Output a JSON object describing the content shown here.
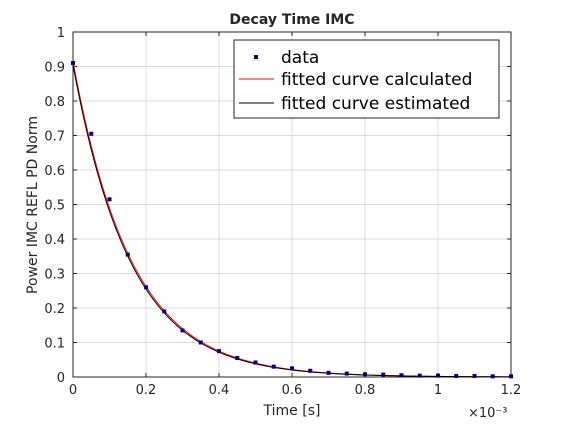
{
  "chart_data": {
    "type": "line",
    "title": "Decay Time IMC",
    "xlabel": "Time [s]",
    "ylabel": "Power IMC REFL PD Norm",
    "x_multiplier": "×10⁻³",
    "xlim": [
      0,
      1.2
    ],
    "ylim": [
      0,
      1
    ],
    "xticks": [
      "0",
      "0.2",
      "0.4",
      "0.6",
      "0.8",
      "1",
      "1.2"
    ],
    "yticks": [
      "0",
      "0.1",
      "0.2",
      "0.3",
      "0.4",
      "0.5",
      "0.6",
      "0.7",
      "0.8",
      "0.9",
      "1"
    ],
    "grid": true,
    "legend_position": "top-right",
    "series": [
      {
        "name": "data",
        "style": "markers",
        "color": "#00008b",
        "x": [
          0,
          0.05,
          0.1,
          0.15,
          0.2,
          0.25,
          0.3,
          0.35,
          0.4,
          0.45,
          0.5,
          0.55,
          0.6,
          0.65,
          0.7,
          0.75,
          0.8,
          0.85,
          0.9,
          0.95,
          1.0,
          1.05,
          1.1,
          1.15,
          1.2
        ],
        "values": [
          0.91,
          0.705,
          0.515,
          0.355,
          0.26,
          0.19,
          0.135,
          0.1,
          0.075,
          0.055,
          0.042,
          0.03,
          0.025,
          0.018,
          0.012,
          0.01,
          0.008,
          0.007,
          0.005,
          0.004,
          0.004,
          0.003,
          0.003,
          0.002,
          0.002
        ]
      },
      {
        "name": "fitted curve calculated",
        "style": "line",
        "color": "#ff0000",
        "amplitude": 0.915,
        "tau": 0.16
      },
      {
        "name": "fitted curve estimated",
        "style": "line",
        "color": "#000000",
        "amplitude": 0.905,
        "tau": 0.158
      }
    ]
  }
}
